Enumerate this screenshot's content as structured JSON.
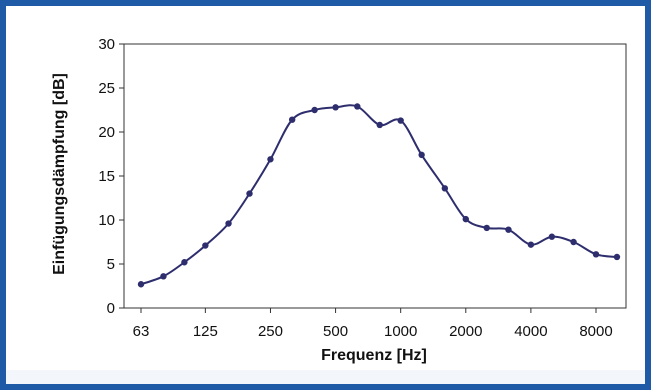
{
  "chart_data": {
    "type": "line",
    "xlabel": "Frequenz [Hz]",
    "ylabel": "Einfügungsdämpfung [dB]",
    "ylim": [
      0,
      30
    ],
    "y_ticks": [
      "0",
      "5",
      "10",
      "15",
      "20",
      "25",
      "30"
    ],
    "x_tick_labels": [
      "63",
      "125",
      "250",
      "500",
      "1000",
      "2000",
      "4000",
      "8000"
    ],
    "x_scale": "log (third-octave bands)",
    "grid": false,
    "x": [
      63,
      80,
      100,
      125,
      160,
      200,
      250,
      315,
      400,
      500,
      630,
      800,
      1000,
      1250,
      1600,
      2000,
      2500,
      3150,
      4000,
      5000,
      6300,
      8000,
      10000
    ],
    "values": [
      2.7,
      3.6,
      5.2,
      7.1,
      9.6,
      13.0,
      16.9,
      21.4,
      22.5,
      22.8,
      22.9,
      20.8,
      21.3,
      17.4,
      13.6,
      10.1,
      9.1,
      8.9,
      7.2,
      8.1,
      7.5,
      6.1,
      5.8
    ],
    "colors": {
      "line": "#2e2e6e",
      "marker": "#2e2e6e",
      "frame": "#1f5aa6",
      "axis": "#333333"
    }
  }
}
